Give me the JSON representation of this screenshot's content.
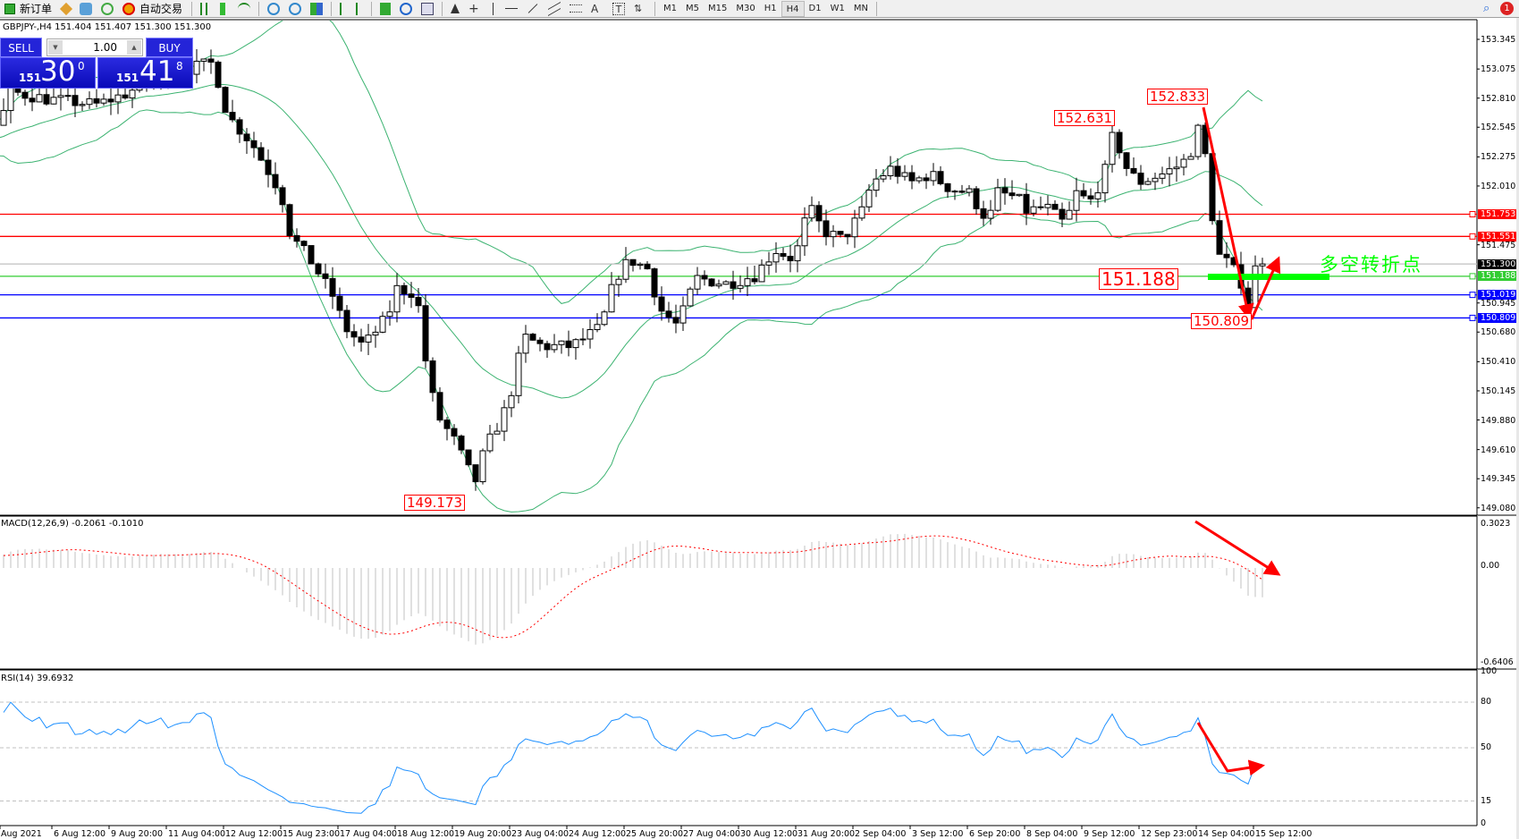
{
  "toolbar": {
    "new_order": "新订单",
    "auto_trading": "自动交易",
    "timeframes": [
      "M1",
      "M5",
      "M15",
      "M30",
      "H1",
      "H4",
      "D1",
      "W1",
      "MN"
    ],
    "active_timeframe": "H4",
    "notification_count": "1"
  },
  "chart": {
    "header": "GBPJPY-,H4  151.404 151.407 151.300 151.300",
    "bull_color": "#ffffff",
    "bear_color": "#000000",
    "bands_color": "#3cb371"
  },
  "trade_panel": {
    "sell": "SELL",
    "buy": "BUY",
    "lot": "1.00",
    "bid_prefix": "151",
    "bid_main": "30",
    "bid_sup": "0",
    "ask_prefix": "151",
    "ask_main": "41",
    "ask_sup": "8"
  },
  "price_axis": {
    "ticks": [
      "153.345",
      "153.075",
      "152.810",
      "152.545",
      "152.275",
      "152.010",
      "151.475",
      "150.945",
      "150.680",
      "150.410",
      "150.145",
      "149.880",
      "149.610",
      "149.345",
      "149.080"
    ]
  },
  "price_lines": [
    {
      "value": "151.753",
      "color": "#ff0000"
    },
    {
      "value": "151.551",
      "color": "#ff0000"
    },
    {
      "value": "151.300",
      "color": "#000000",
      "line": "#c0c0c0"
    },
    {
      "value": "151.188",
      "color": "#32cd32"
    },
    {
      "value": "151.019",
      "color": "#0000ff"
    },
    {
      "value": "150.809",
      "color": "#0000ff"
    }
  ],
  "annotations": {
    "high": "152.833",
    "prev_high": "152.631",
    "pivot": "151.188",
    "low": "150.809",
    "swing_low": "149.173",
    "pivot_text": "多空转折点",
    "arrow_color": "#ff0000",
    "pivot_color": "#00ff00"
  },
  "macd": {
    "label": "MACD(12,26,9) -0.2061 -0.1010",
    "max": "0.3023",
    "zero": "0.00",
    "min": "-0.6406"
  },
  "rsi": {
    "label": "RSI(14) 39.6932",
    "levels": [
      "100",
      "80",
      "50",
      "15",
      "0"
    ],
    "color": "#1e90ff"
  },
  "time_axis": [
    "Aug 2021",
    "6 Aug 12:00",
    "9 Aug 20:00",
    "11 Aug 04:00",
    "12 Aug 12:00",
    "15 Aug 23:00",
    "17 Aug 04:00",
    "18 Aug 12:00",
    "19 Aug 20:00",
    "23 Aug 04:00",
    "24 Aug 12:00",
    "25 Aug 20:00",
    "27 Aug 04:00",
    "30 Aug 12:00",
    "31 Aug 20:00",
    "2 Sep 04:00",
    "3 Sep 12:00",
    "6 Sep 20:00",
    "8 Sep 04:00",
    "9 Sep 12:00",
    "12 Sep 23:00",
    "14 Sep 04:00",
    "15 Sep 12:00"
  ]
}
